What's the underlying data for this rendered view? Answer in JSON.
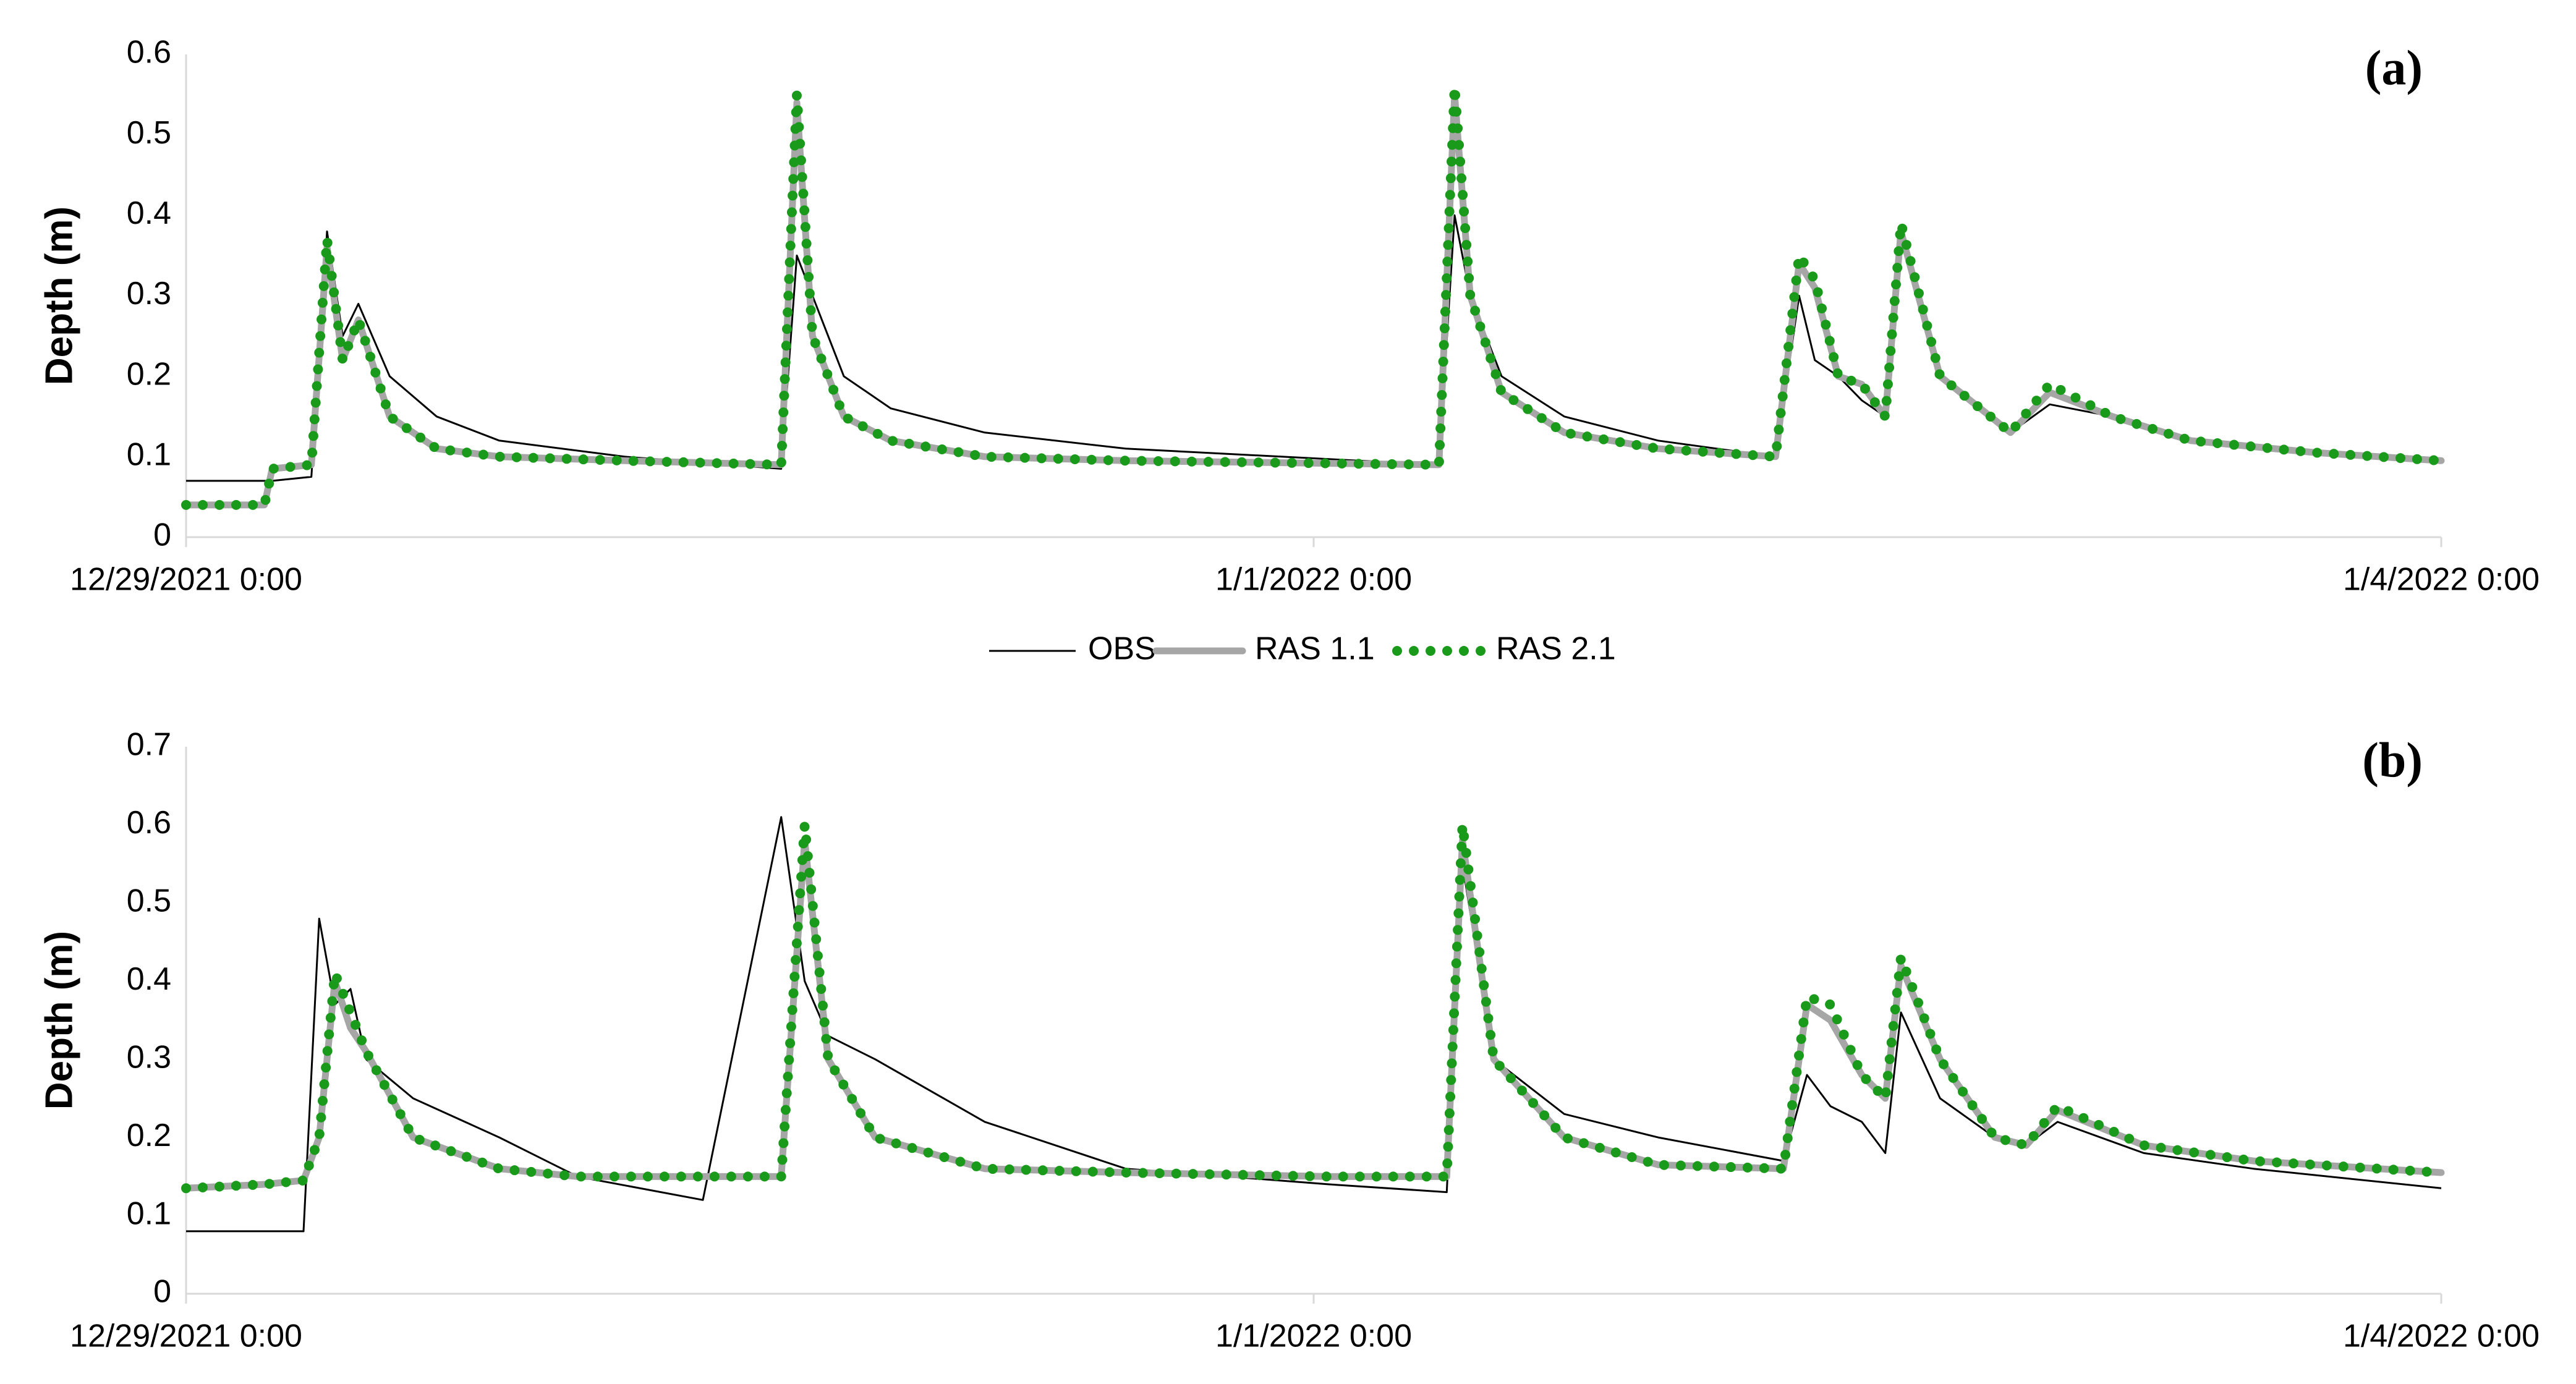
{
  "chart_data": [
    {
      "type": "line",
      "panel_label": "(a)",
      "y_label": "Depth (m)",
      "x": [
        "12/29/2021 0:00",
        "12/29/2021 5:00",
        "12/29/2021 5:30",
        "12/29/2021 8:00",
        "12/29/2021 9:00",
        "12/29/2021 10:00",
        "12/29/2021 11:00",
        "12/29/2021 13:00",
        "12/29/2021 16:00",
        "12/29/2021 20:00",
        "12/30/2021 4:00",
        "12/30/2021 14:00",
        "12/30/2021 15:00",
        "12/30/2021 16:00",
        "12/30/2021 18:00",
        "12/30/2021 21:00",
        "12/31/2021 3:00",
        "12/31/2021 12:00",
        "1/1/2022 8:00",
        "1/1/2022 9:00",
        "1/1/2022 10:00",
        "1/1/2022 12:00",
        "1/1/2022 16:00",
        "1/1/2022 22:00",
        "1/2/2022 5:30",
        "1/2/2022 7:00",
        "1/2/2022 8:00",
        "1/2/2022 9:30",
        "1/2/2022 11:00",
        "1/2/2022 12:30",
        "1/2/2022 13:30",
        "1/2/2022 16:00",
        "1/2/2022 20:30",
        "1/2/2022 23:00",
        "1/3/2022 3:00",
        "1/3/2022 8:00",
        "1/3/2022 16:00",
        "1/4/2022 0:00"
      ],
      "series": [
        {
          "name": "OBS",
          "color": "#000000",
          "style": "solid",
          "values": [
            0.07,
            0.07,
            0.07,
            0.075,
            0.38,
            0.25,
            0.29,
            0.2,
            0.15,
            0.12,
            0.1,
            0.085,
            0.35,
            0.3,
            0.2,
            0.16,
            0.13,
            0.11,
            0.09,
            0.4,
            0.3,
            0.2,
            0.15,
            0.12,
            0.1,
            0.3,
            0.22,
            0.2,
            0.17,
            0.15,
            0.37,
            0.2,
            0.13,
            0.165,
            0.15,
            0.12,
            0.105,
            0.095
          ]
        },
        {
          "name": "RAS 1.1",
          "color": "#a6a6a6",
          "style": "thick",
          "values": [
            0.04,
            0.04,
            0.085,
            0.09,
            0.36,
            0.22,
            0.27,
            0.15,
            0.11,
            0.1,
            0.095,
            0.09,
            0.54,
            0.25,
            0.15,
            0.12,
            0.1,
            0.095,
            0.09,
            0.55,
            0.3,
            0.18,
            0.13,
            0.11,
            0.1,
            0.34,
            0.31,
            0.2,
            0.19,
            0.15,
            0.38,
            0.2,
            0.13,
            0.18,
            0.15,
            0.12,
            0.105,
            0.095
          ]
        },
        {
          "name": "RAS 2.1",
          "color": "#1a9a1a",
          "style": "dotted",
          "values": [
            0.04,
            0.04,
            0.085,
            0.09,
            0.37,
            0.22,
            0.27,
            0.15,
            0.11,
            0.1,
            0.095,
            0.09,
            0.55,
            0.25,
            0.15,
            0.12,
            0.1,
            0.095,
            0.09,
            0.56,
            0.3,
            0.18,
            0.13,
            0.11,
            0.1,
            0.35,
            0.32,
            0.2,
            0.19,
            0.15,
            0.39,
            0.2,
            0.13,
            0.19,
            0.15,
            0.12,
            0.105,
            0.095
          ]
        }
      ],
      "xlim": [
        "12/29/2021 0:00",
        "1/4/2022 0:00"
      ],
      "xticks": [
        "12/29/2021 0:00",
        "1/1/2022 0:00",
        "1/4/2022 0:00"
      ],
      "ylim": [
        0,
        0.6
      ],
      "yticks": [
        0,
        0.1,
        0.2,
        0.3,
        0.4,
        0.5,
        0.6
      ],
      "legend": "bottom"
    },
    {
      "type": "line",
      "panel_label": "(b)",
      "y_label": "Depth (m)",
      "x": [
        "12/29/2021 0:00",
        "12/29/2021 5:00",
        "12/29/2021 7:30",
        "12/29/2021 8:30",
        "12/29/2021 9:30",
        "12/29/2021 10:30",
        "12/29/2021 11:30",
        "12/29/2021 14:30",
        "12/29/2021 20:00",
        "12/30/2021 1:00",
        "12/30/2021 9:00",
        "12/30/2021 14:00",
        "12/30/2021 15:30",
        "12/30/2021 17:00",
        "12/30/2021 20:00",
        "12/31/2021 3:00",
        "12/31/2021 12:00",
        "1/1/2022 1:00",
        "1/1/2022 8:30",
        "1/1/2022 9:30",
        "1/1/2022 11:30",
        "1/1/2022 16:00",
        "1/1/2022 22:00",
        "1/2/2022 6:00",
        "1/2/2022 7:30",
        "1/2/2022 9:00",
        "1/2/2022 11:00",
        "1/2/2022 12:30",
        "1/2/2022 13:30",
        "1/2/2022 16:00",
        "1/2/2022 19:30",
        "1/2/2022 21:30",
        "1/2/2022 23:30",
        "1/3/2022 5:00",
        "1/3/2022 12:00",
        "1/4/2022 0:00"
      ],
      "series": [
        {
          "color": "#000000",
          "style": "solid",
          "values": [
            0.08,
            0.08,
            0.08,
            0.48,
            0.37,
            0.39,
            0.3,
            0.25,
            0.2,
            0.15,
            0.12,
            0.61,
            0.4,
            0.33,
            0.3,
            0.22,
            0.16,
            0.14,
            0.13,
            0.55,
            0.3,
            0.23,
            0.2,
            0.17,
            0.28,
            0.24,
            0.22,
            0.18,
            0.36,
            0.25,
            0.2,
            0.19,
            0.22,
            0.18,
            0.16,
            0.135
          ]
        },
        {
          "color": "#a6a6a6",
          "style": "thick",
          "values": [
            0.135,
            0.14,
            0.145,
            0.2,
            0.4,
            0.34,
            0.31,
            0.2,
            0.16,
            0.15,
            0.15,
            0.15,
            0.58,
            0.3,
            0.2,
            0.16,
            0.155,
            0.15,
            0.15,
            0.58,
            0.3,
            0.2,
            0.165,
            0.16,
            0.37,
            0.35,
            0.28,
            0.25,
            0.42,
            0.3,
            0.2,
            0.19,
            0.235,
            0.19,
            0.17,
            0.155
          ]
        },
        {
          "color": "#1a9a1a",
          "style": "dotted",
          "values": [
            0.135,
            0.14,
            0.145,
            0.2,
            0.41,
            0.36,
            0.31,
            0.2,
            0.16,
            0.15,
            0.15,
            0.15,
            0.6,
            0.3,
            0.2,
            0.16,
            0.155,
            0.15,
            0.15,
            0.6,
            0.3,
            0.2,
            0.165,
            0.16,
            0.38,
            0.37,
            0.28,
            0.25,
            0.43,
            0.3,
            0.2,
            0.19,
            0.24,
            0.19,
            0.17,
            0.155
          ]
        }
      ],
      "xlim": [
        "12/29/2021 0:00",
        "1/4/2022 0:00"
      ],
      "xticks": [
        "12/29/2021 0:00",
        "1/1/2022 0:00",
        "1/4/2022 0:00"
      ],
      "ylim": [
        0,
        0.7
      ],
      "yticks": [
        0,
        0.1,
        0.2,
        0.3,
        0.4,
        0.5,
        0.6,
        0.7
      ]
    }
  ]
}
